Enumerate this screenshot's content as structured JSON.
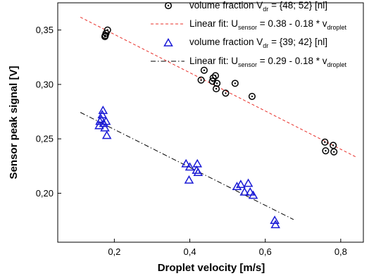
{
  "chart_data": {
    "type": "scatter",
    "xlabel": "Droplet velocity [m/s]",
    "ylabel": "Sensor peak signal [V]",
    "xlim": [
      0.05,
      0.86
    ],
    "ylim": [
      0.155,
      0.375
    ],
    "x_ticks": [
      0.2,
      0.4,
      0.6,
      0.8
    ],
    "x_tick_labels": [
      "0,2",
      "0,4",
      "0,6",
      "0,8"
    ],
    "y_ticks": [
      0.2,
      0.25,
      0.3,
      0.35
    ],
    "y_tick_labels": [
      "0,20",
      "0,25",
      "0,30",
      "0,35"
    ],
    "grid": false,
    "legend_position": "top-right",
    "series": [
      {
        "name": "volume fraction V_dr = {48; 52} [nl]",
        "marker": "circle-dot",
        "color": "#000000",
        "points": [
          [
            0.175,
            0.344
          ],
          [
            0.178,
            0.347
          ],
          [
            0.182,
            0.35
          ],
          [
            0.176,
            0.345
          ],
          [
            0.43,
            0.304
          ],
          [
            0.438,
            0.313
          ],
          [
            0.46,
            0.303
          ],
          [
            0.462,
            0.306
          ],
          [
            0.468,
            0.308
          ],
          [
            0.47,
            0.296
          ],
          [
            0.472,
            0.301
          ],
          [
            0.495,
            0.292
          ],
          [
            0.52,
            0.301
          ],
          [
            0.565,
            0.289
          ],
          [
            0.758,
            0.247
          ],
          [
            0.76,
            0.239
          ],
          [
            0.78,
            0.244
          ],
          [
            0.782,
            0.238
          ]
        ]
      },
      {
        "name": "Linear fit: U_sensor = 0.38 - 0.18 * v_droplet",
        "line": "dashed",
        "color": "#e8302a",
        "fit": [
          [
            0.11,
            0.3618
          ],
          [
            0.84,
            0.2334
          ]
        ]
      },
      {
        "name": "volume fraction V_dr = {39; 42} [nl]",
        "marker": "triangle",
        "color": "#1a1ad6",
        "points": [
          [
            0.16,
            0.262
          ],
          [
            0.162,
            0.266
          ],
          [
            0.165,
            0.268
          ],
          [
            0.168,
            0.272
          ],
          [
            0.17,
            0.276
          ],
          [
            0.172,
            0.264
          ],
          [
            0.175,
            0.26
          ],
          [
            0.178,
            0.266
          ],
          [
            0.18,
            0.253
          ],
          [
            0.39,
            0.227
          ],
          [
            0.398,
            0.212
          ],
          [
            0.4,
            0.224
          ],
          [
            0.418,
            0.221
          ],
          [
            0.42,
            0.227
          ],
          [
            0.422,
            0.219
          ],
          [
            0.525,
            0.206
          ],
          [
            0.535,
            0.208
          ],
          [
            0.545,
            0.201
          ],
          [
            0.555,
            0.209
          ],
          [
            0.56,
            0.201
          ],
          [
            0.568,
            0.198
          ],
          [
            0.625,
            0.175
          ],
          [
            0.627,
            0.171
          ]
        ]
      },
      {
        "name": "Linear fit: U_sensor = 0.29 - 0.18 * v_droplet",
        "line": "dash-dot",
        "color": "#000000",
        "fit": [
          [
            0.11,
            0.2743
          ],
          [
            0.675,
            0.1758
          ]
        ]
      }
    ],
    "legend": [
      {
        "prefix": "volume fraction V",
        "sub": "dr",
        "suffix": " = {48; 52} [nl]"
      },
      {
        "prefix": "Linear fit: U",
        "sub": "sensor",
        "suffix": " = 0.38 - 0.18 * v",
        "sub2": "droplet"
      },
      {
        "prefix": "volume fraction V",
        "sub": "dr",
        "suffix": " = {39; 42} [nl]"
      },
      {
        "prefix": "Linear fit: U",
        "sub": "sensor",
        "suffix": " = 0.29 - 0.18 * v",
        "sub2": "droplet"
      }
    ]
  }
}
